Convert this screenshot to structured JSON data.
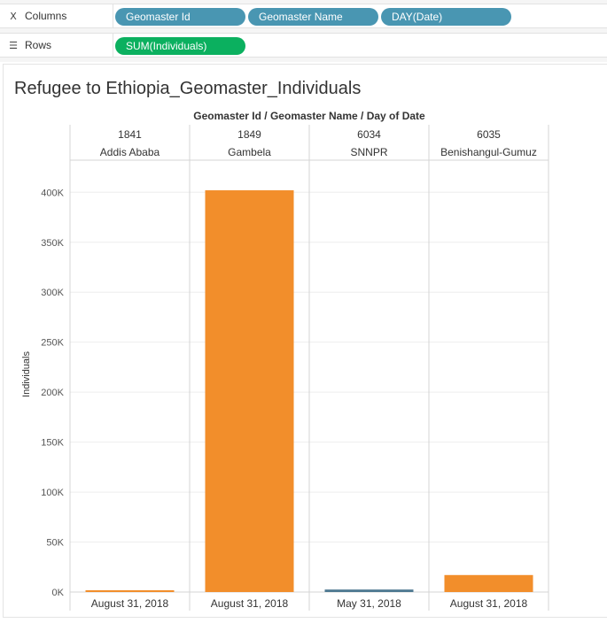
{
  "shelves": {
    "columns": {
      "label": "Columns",
      "icon": "columns-icon",
      "pills": [
        "Geomaster Id",
        "Geomaster Name",
        "DAY(Date)"
      ]
    },
    "rows": {
      "label": "Rows",
      "icon": "rows-icon",
      "pills": [
        "SUM(Individuals)"
      ]
    }
  },
  "colors": {
    "dimension_pill": "#4996b2",
    "measure_pill": "#0bb05f",
    "orange": "#f28e2b",
    "teal": "#4e7991"
  },
  "chart_data": {
    "type": "bar",
    "title": "Refugee to Ethiopia_Geomaster_Individuals",
    "header_title": "Geomaster Id / Geomaster Name / Day of Date",
    "ylabel": "Individuals",
    "ylim": [
      0,
      410000
    ],
    "yticks": [
      0,
      50000,
      100000,
      150000,
      200000,
      250000,
      300000,
      350000,
      400000
    ],
    "ytick_labels": [
      "0K",
      "50K",
      "100K",
      "150K",
      "200K",
      "250K",
      "300K",
      "350K",
      "400K"
    ],
    "grid": true,
    "panes": [
      {
        "id": "1841",
        "name": "Addis Ababa",
        "date": "August 31, 2018",
        "value": 1000,
        "color": "#f28e2b"
      },
      {
        "id": "1849",
        "name": "Gambela",
        "date": "August 31, 2018",
        "value": 402000,
        "color": "#f28e2b"
      },
      {
        "id": "6034",
        "name": "SNNPR",
        "date": "May 31, 2018",
        "value": 2500,
        "color": "#4e7991"
      },
      {
        "id": "6035",
        "name": "Benishangul-Gumuz",
        "date": "August 31, 2018",
        "value": 17000,
        "color": "#f28e2b"
      }
    ]
  }
}
